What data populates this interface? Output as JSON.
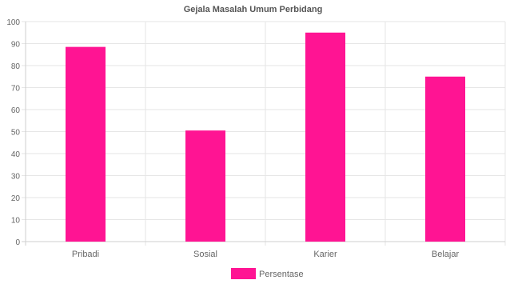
{
  "chart_data": {
    "type": "bar",
    "title": "Gejala Masalah Umum Perbidang",
    "categories": [
      "Pribadi",
      "Sosial",
      "Karier",
      "Belajar"
    ],
    "series": [
      {
        "name": "Persentase",
        "values": [
          88.5,
          50.5,
          95,
          75
        ],
        "color": "#ff1493"
      }
    ],
    "ylim": [
      0,
      100
    ],
    "yticks": [
      0,
      10,
      20,
      30,
      40,
      50,
      60,
      70,
      80,
      90,
      100
    ],
    "grid": true,
    "legend_position": "bottom"
  },
  "colors": {
    "bar": "#ff1493",
    "grid": "#e6e6e6",
    "axis": "#cfcfcf",
    "text": "#666666",
    "title": "#555555"
  }
}
